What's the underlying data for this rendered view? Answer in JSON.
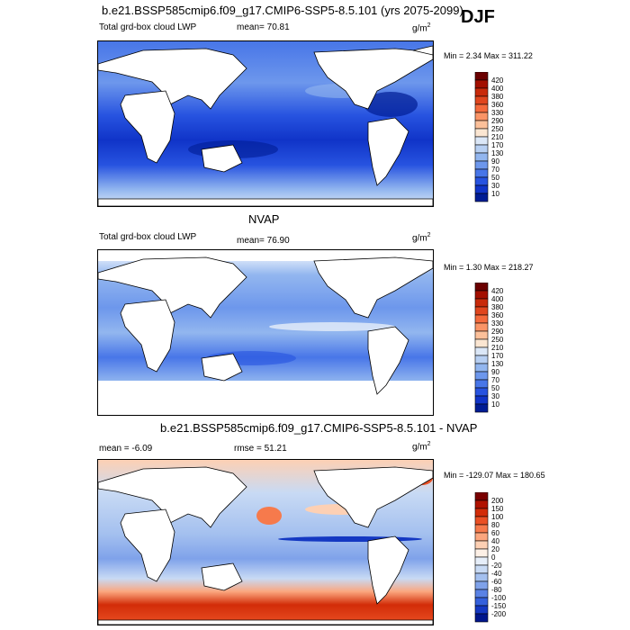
{
  "season": "DJF",
  "panels": [
    {
      "title": "b.e21.BSSP585cmip6.f09_g17.CMIP6-SSP5-8.5.101 (yrs 2075-2099)",
      "left_label": "Total grd-box cloud LWP",
      "mid_label": "mean=  70.81",
      "units": "g/m",
      "units_sup": "2",
      "minmax": "Min =   2.34 Max = 311.22",
      "colorbar": {
        "levels": [
          "420",
          "400",
          "380",
          "360",
          "330",
          "290",
          "250",
          "210",
          "170",
          "130",
          "90",
          "70",
          "50",
          "30",
          "10"
        ],
        "colors": [
          "#6b0000",
          "#a30f00",
          "#c82a0a",
          "#e0461e",
          "#f46a3c",
          "#fa9466",
          "#fcc09a",
          "#fbe6d2",
          "#dbe7f7",
          "#b7cff2",
          "#92b6ef",
          "#6d97ec",
          "#4876e8",
          "#2753e0",
          "#1034c8",
          "#001c94"
        ]
      }
    },
    {
      "title": "NVAP",
      "left_label": "Total grd-box cloud LWP",
      "mid_label": "mean=  76.90",
      "units": "g/m",
      "units_sup": "2",
      "minmax": "Min =   1.30 Max = 218.27",
      "colorbar": {
        "levels": [
          "420",
          "400",
          "380",
          "360",
          "330",
          "290",
          "250",
          "210",
          "170",
          "130",
          "90",
          "70",
          "50",
          "30",
          "10"
        ],
        "colors": [
          "#6b0000",
          "#a30f00",
          "#c82a0a",
          "#e0461e",
          "#f46a3c",
          "#fa9466",
          "#fcc09a",
          "#fbe6d2",
          "#dbe7f7",
          "#b7cff2",
          "#92b6ef",
          "#6d97ec",
          "#4876e8",
          "#2753e0",
          "#1034c8",
          "#001c94"
        ]
      }
    },
    {
      "title": "b.e21.BSSP585cmip6.f09_g17.CMIP6-SSP5-8.5.101 - NVAP",
      "left_label": "mean =  -6.09",
      "mid_label": "rmse =  51.21",
      "units": "g/m",
      "units_sup": "2",
      "minmax": "Min = -129.07 Max = 180.65",
      "colorbar": {
        "levels": [
          "200",
          "150",
          "100",
          "80",
          "60",
          "40",
          "20",
          "0",
          "-20",
          "-40",
          "-60",
          "-80",
          "-100",
          "-150",
          "-200"
        ],
        "colors": [
          "#7a0000",
          "#b01200",
          "#d22c08",
          "#ea5024",
          "#f67a4c",
          "#fba67e",
          "#fdd0b4",
          "#fdf0e6",
          "#e6eef9",
          "#c8daf4",
          "#a4c0ef",
          "#7fa2ea",
          "#5a82e5",
          "#3460dc",
          "#1438c2",
          "#00168c"
        ]
      }
    }
  ],
  "chart_data": {
    "type": "heatmap",
    "variable": "Total grd-box cloud LWP",
    "season": "DJF",
    "units": "g/m2",
    "maps": [
      {
        "name": "b.e21.BSSP585cmip6.f09_g17.CMIP6-SSP5-8.5.101 (yrs 2075-2099)",
        "mean": 70.81,
        "min": 2.34,
        "max": 311.22
      },
      {
        "name": "NVAP",
        "mean": 76.9,
        "min": 1.3,
        "max": 218.27
      },
      {
        "name": "b.e21.BSSP585cmip6.f09_g17.CMIP6-SSP5-8.5.101 - NVAP",
        "mean": -6.09,
        "rmse": 51.21,
        "min": -129.07,
        "max": 180.65
      }
    ]
  }
}
